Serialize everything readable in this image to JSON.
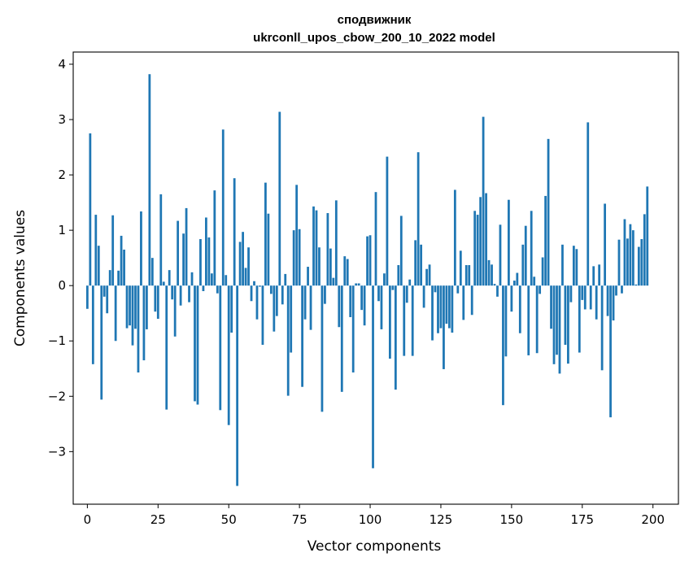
{
  "chart_data": {
    "type": "bar",
    "title": "сподвижник",
    "subtitle": "ukrconll_upos_cbow_200_10_2022 model",
    "xlabel": "Vector components",
    "ylabel": "Components values",
    "xlim": [
      -5,
      209
    ],
    "ylim": [
      -3.95,
      4.22
    ],
    "xticks": [
      0,
      25,
      50,
      75,
      100,
      125,
      150,
      175,
      200
    ],
    "yticks": [
      -3,
      -2,
      -1,
      0,
      1,
      2,
      3,
      4
    ],
    "bar_color": "#1f77b4",
    "grid": false,
    "values": [
      -0.42,
      2.75,
      -1.42,
      1.28,
      0.72,
      -2.06,
      -0.2,
      -0.5,
      0.28,
      1.27,
      -1.0,
      0.27,
      0.9,
      0.65,
      -0.77,
      -0.72,
      -1.08,
      -0.78,
      -1.57,
      1.34,
      -1.35,
      -0.79,
      3.82,
      0.5,
      -0.47,
      -0.6,
      1.65,
      0.07,
      -2.24,
      0.28,
      -0.25,
      -0.92,
      1.17,
      -0.36,
      0.94,
      1.4,
      -0.3,
      0.24,
      -2.09,
      -2.15,
      0.84,
      -0.1,
      1.23,
      0.87,
      0.22,
      1.72,
      -0.14,
      -2.25,
      2.82,
      0.19,
      -2.52,
      -0.85,
      1.94,
      -3.62,
      0.79,
      0.97,
      0.32,
      0.69,
      -0.28,
      0.08,
      -0.61,
      -0.02,
      -1.07,
      1.86,
      1.3,
      -0.15,
      -0.83,
      -0.55,
      3.14,
      -0.34,
      0.21,
      -1.99,
      -1.21,
      1.0,
      1.82,
      1.02,
      -1.83,
      -0.61,
      0.34,
      -0.8,
      1.43,
      1.36,
      0.69,
      -2.28,
      -0.33,
      1.31,
      0.67,
      0.14,
      1.54,
      -0.75,
      -1.92,
      0.53,
      0.48,
      -0.57,
      -1.57,
      0.04,
      0.04,
      -0.44,
      -0.72,
      0.89,
      0.91,
      -3.3,
      1.69,
      -0.28,
      -0.79,
      0.22,
      2.33,
      -1.32,
      -0.08,
      -1.88,
      0.37,
      1.26,
      -1.27,
      -0.31,
      0.11,
      -1.27,
      0.82,
      2.41,
      0.74,
      -0.4,
      0.3,
      0.38,
      -0.99,
      -0.12,
      -0.86,
      -0.77,
      -1.51,
      -0.69,
      -0.77,
      -0.85,
      1.73,
      -0.14,
      0.63,
      -0.62,
      0.37,
      0.37,
      -0.53,
      1.35,
      1.28,
      1.6,
      3.05,
      1.67,
      0.46,
      0.38,
      0.03,
      -0.2,
      1.1,
      -2.16,
      -1.28,
      1.55,
      -0.47,
      0.09,
      0.23,
      -0.86,
      0.74,
      1.08,
      -1.26,
      1.35,
      0.16,
      -1.22,
      -0.15,
      0.51,
      1.62,
      2.65,
      -0.78,
      -1.42,
      -1.25,
      -1.59,
      0.74,
      -1.07,
      -1.41,
      -0.3,
      0.72,
      0.66,
      -1.21,
      -0.26,
      -0.43,
      2.95,
      -0.43,
      0.35,
      -0.61,
      0.38,
      -1.53,
      1.48,
      -0.55,
      -2.38,
      -0.63,
      -0.18,
      0.83,
      -0.14,
      1.2,
      0.85,
      1.11,
      1.0,
      0.02,
      0.7,
      0.84,
      1.29,
      1.79
    ]
  }
}
